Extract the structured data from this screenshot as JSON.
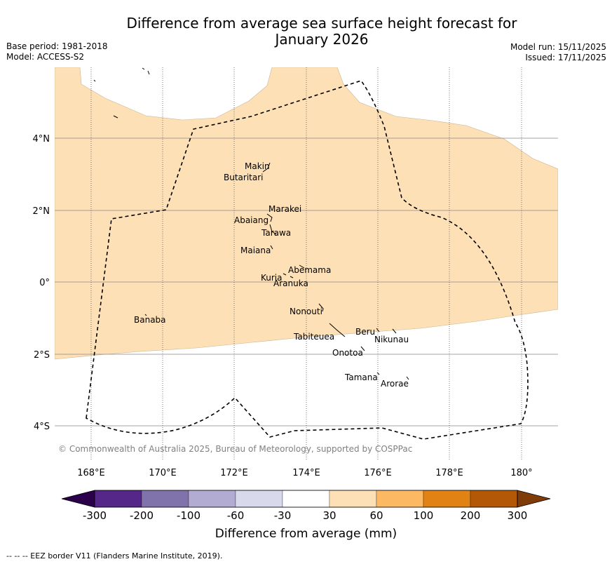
{
  "title": "Difference from average sea surface height forecast for\nJanuary 2026",
  "base_period": "Base period: 1981-2018",
  "model": "Model: ACCESS-S2",
  "model_run": "Model run: 15/11/2025",
  "issued": "Issued: 17/11/2025",
  "copyright": "© Commonwealth of Australia 2025, Bureau of Meteorology, supported by COSPPac",
  "lon_ticks": [
    "168°E",
    "170°E",
    "172°E",
    "174°E",
    "176°E",
    "178°E",
    "180°"
  ],
  "lat_ticks": [
    "4°N",
    "2°N",
    "0°",
    "2°S",
    "4°S"
  ],
  "islands": [
    "Makin",
    "Butaritari",
    "Marakei",
    "Abaiang",
    "Tarawa",
    "Maiana",
    "Abemama",
    "Kuria",
    "Aranuka",
    "Banaba",
    "Nonouti",
    "Tabiteuea",
    "Beru",
    "Nikunau",
    "Onotoa",
    "Tamana",
    "Arorae"
  ],
  "colorbar": {
    "ticks": [
      "-300",
      "-200",
      "-100",
      "-60",
      "-30",
      "30",
      "60",
      "100",
      "200",
      "300"
    ],
    "colors": [
      "#2d004b",
      "#542788",
      "#8073ac",
      "#b2abd2",
      "#d8daeb",
      "#ffffff",
      "#fee0b6",
      "#fdb863",
      "#e08214",
      "#b35806",
      "#7f3b08"
    ],
    "label": "Difference from average (mm)"
  },
  "footer": "--  --  -- EEZ border V11 (Flanders Marine Institute, 2019).",
  "colors": {
    "anomaly_30_60": "#fee0b6",
    "grid": "#888888"
  }
}
